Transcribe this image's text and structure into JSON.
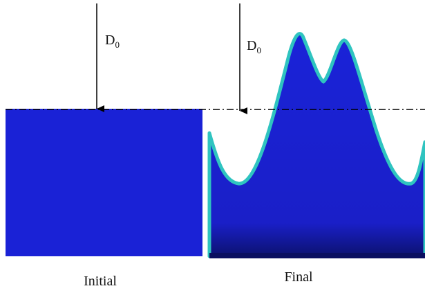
{
  "panels": [
    {
      "caption": "Initial",
      "arrow_label": {
        "main": "D",
        "sub": "0"
      }
    },
    {
      "caption": "Final",
      "arrow_label": {
        "main": "D",
        "sub": "0"
      }
    }
  ]
}
